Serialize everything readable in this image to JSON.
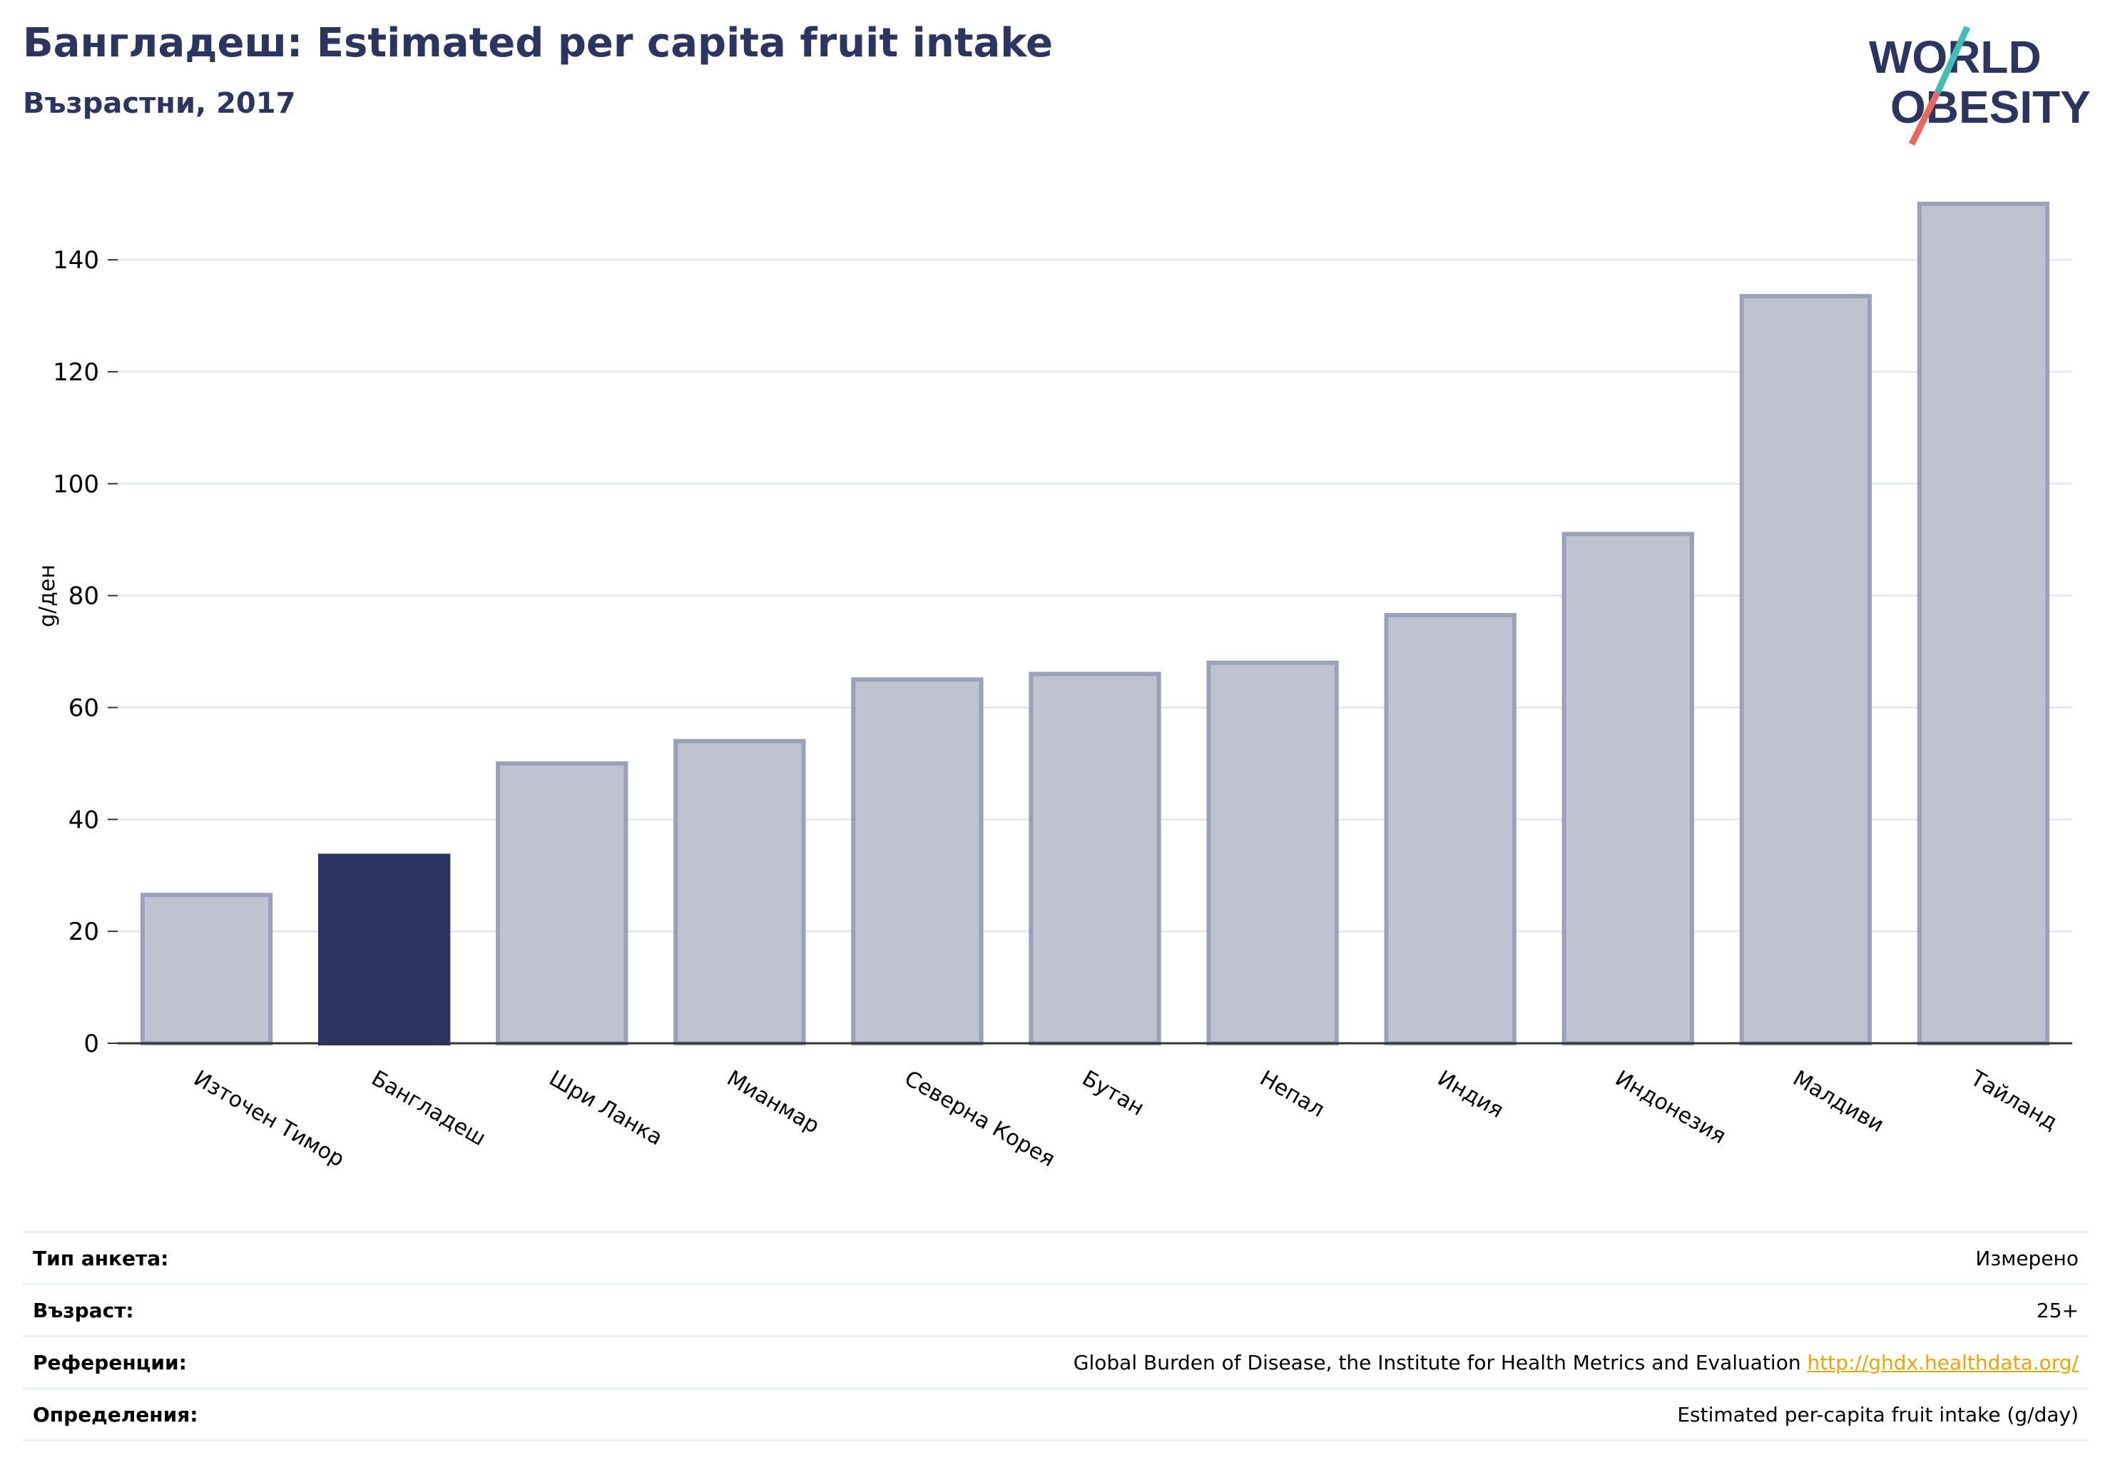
{
  "header": {
    "title": "Бангладеш: Estimated per capita fruit intake",
    "subtitle": "Възрастни, 2017"
  },
  "logo": {
    "line1": "WORLD",
    "line2": "OBESITY"
  },
  "chart_data": {
    "type": "bar",
    "categories": [
      "Източен Тимор",
      "Бангладеш",
      "Шри Ланка",
      "Мианмар",
      "Северна Корея",
      "Бутан",
      "Непал",
      "Индия",
      "Индонезия",
      "Малдиви",
      "Тайланд"
    ],
    "values": [
      26.5,
      33.5,
      50,
      54,
      65,
      66,
      68,
      76.5,
      91,
      133.5,
      150
    ],
    "highlight": "Бангладеш",
    "ylabel": "g/ден",
    "xlabel": "",
    "ylim": [
      0,
      150
    ],
    "yticks": [
      0,
      20,
      40,
      60,
      80,
      100,
      120,
      140
    ],
    "grid": true,
    "colors": {
      "bar": "#bfc3d0",
      "bar_edge": "#9ba1b8",
      "highlight": "#2b3562",
      "grid": "#e6e8ee",
      "axis": "#333333"
    }
  },
  "info": [
    {
      "label": "Тип анкета:",
      "value": "Измерено"
    },
    {
      "label": "Възраст:",
      "value": "25+"
    },
    {
      "label": "Референции:",
      "value": "Global Burden of Disease, the Institute for Health Metrics and Evaluation",
      "link": "http://ghdx.healthdata.org/"
    },
    {
      "label": "Определения:",
      "value": "Estimated per-capita fruit intake (g/day)"
    }
  ]
}
